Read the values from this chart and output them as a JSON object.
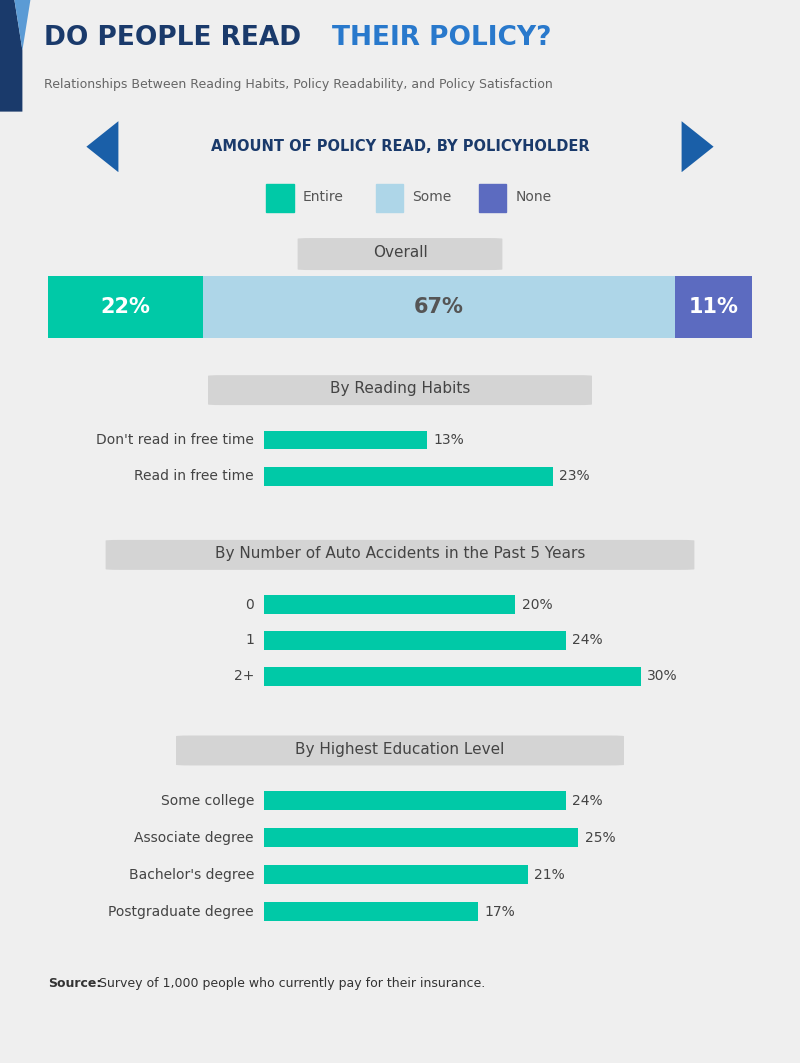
{
  "title_part1": "DO PEOPLE READ ",
  "title_part2": "THEIR POLICY?",
  "subtitle": "Relationships Between Reading Habits, Policy Readability, and Policy Satisfaction",
  "section_header": "AMOUNT OF POLICY READ, BY POLICYHOLDER",
  "legend_items": [
    "Entire",
    "Some",
    "None"
  ],
  "legend_colors": [
    "#00c9a7",
    "#aed6e8",
    "#5c6bc0"
  ],
  "overall_values": [
    22,
    67,
    11
  ],
  "overall_colors": [
    "#00c9a7",
    "#aed6e8",
    "#5c6bc0"
  ],
  "reading_habits_title": "By Reading Habits",
  "reading_habits_labels": [
    "Don't read in free time",
    "Read in free time"
  ],
  "reading_habits_values": [
    13,
    23
  ],
  "auto_accidents_title": "By Number of Auto Accidents in the Past 5 Years",
  "auto_accidents_labels": [
    "0",
    "1",
    "2+"
  ],
  "auto_accidents_values": [
    20,
    24,
    30
  ],
  "education_title": "By Highest Education Level",
  "education_labels": [
    "Some college",
    "Associate degree",
    "Bachelor's degree",
    "Postgraduate degree"
  ],
  "education_values": [
    24,
    25,
    21,
    17
  ],
  "bar_color": "#00c9a7",
  "bg_color": "#efefef",
  "title_bg_color": "#e8e8e8",
  "title_color1": "#1a3a6b",
  "title_color2": "#2979cc",
  "subtitle_color": "#666666",
  "section_bg": "#b8cfe0",
  "section_text_color": "#1a3a6b",
  "subsection_bg": "#d4d4d4",
  "subsection_text_color": "#444444",
  "bar_label_color": "#555555",
  "source_bold": "Source:",
  "source_rest": " Survey of 1,000 people who currently pay for their insurance."
}
